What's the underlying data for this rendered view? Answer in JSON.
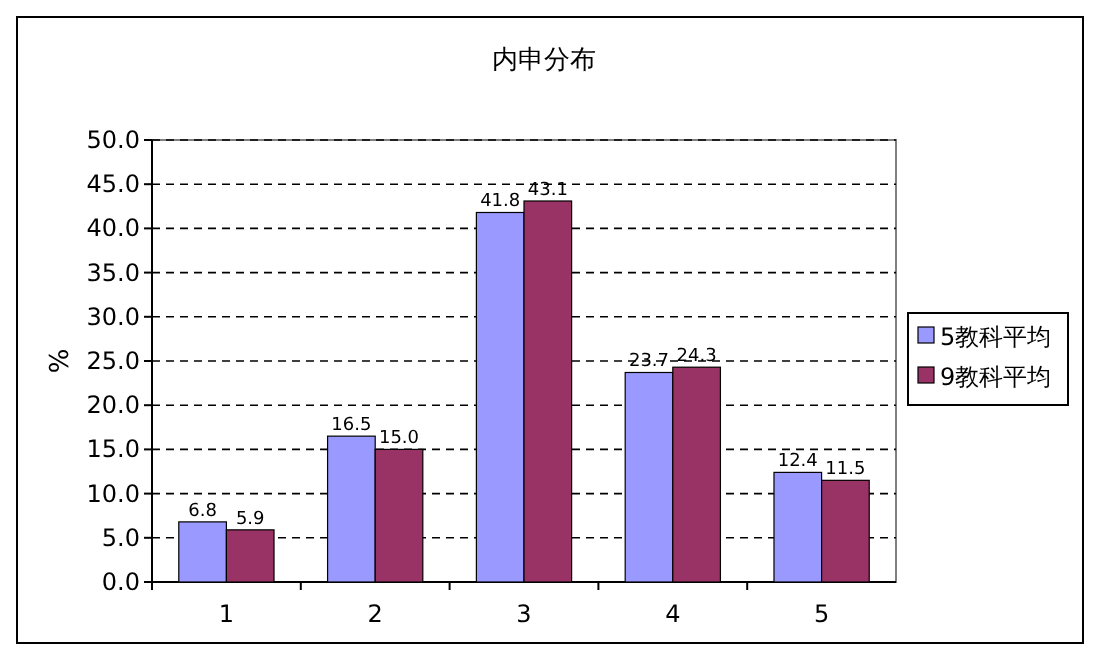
{
  "chart_data": {
    "type": "bar",
    "title": "内申分布",
    "ylabel": "%",
    "categories": [
      "1",
      "2",
      "3",
      "4",
      "5"
    ],
    "series": [
      {
        "name": "5教科平均",
        "color": "#9999ff",
        "values": [
          6.8,
          16.5,
          41.8,
          23.7,
          12.4
        ],
        "value_labels": [
          "6.8",
          "16.5",
          "41.8",
          "23.7",
          "12.4"
        ]
      },
      {
        "name": "9教科平均",
        "color": "#993366",
        "values": [
          5.9,
          15.0,
          43.1,
          24.3,
          11.5
        ],
        "value_labels": [
          "5.9",
          "15.0",
          "43.1",
          "24.3",
          "11.5"
        ]
      }
    ],
    "ylim": [
      0,
      50
    ],
    "yticks": [
      {
        "value": 0,
        "label": "0.0"
      },
      {
        "value": 5,
        "label": "5.0"
      },
      {
        "value": 10,
        "label": "10.0"
      },
      {
        "value": 15,
        "label": "15.0"
      },
      {
        "value": 20,
        "label": "20.0"
      },
      {
        "value": 25,
        "label": "25.0"
      },
      {
        "value": 30,
        "label": "30.0"
      },
      {
        "value": 35,
        "label": "35.0"
      },
      {
        "value": 40,
        "label": "40.0"
      },
      {
        "value": 45,
        "label": "45.0"
      },
      {
        "value": 50,
        "label": "50.0"
      }
    ],
    "grid": "y",
    "legend": "right"
  }
}
